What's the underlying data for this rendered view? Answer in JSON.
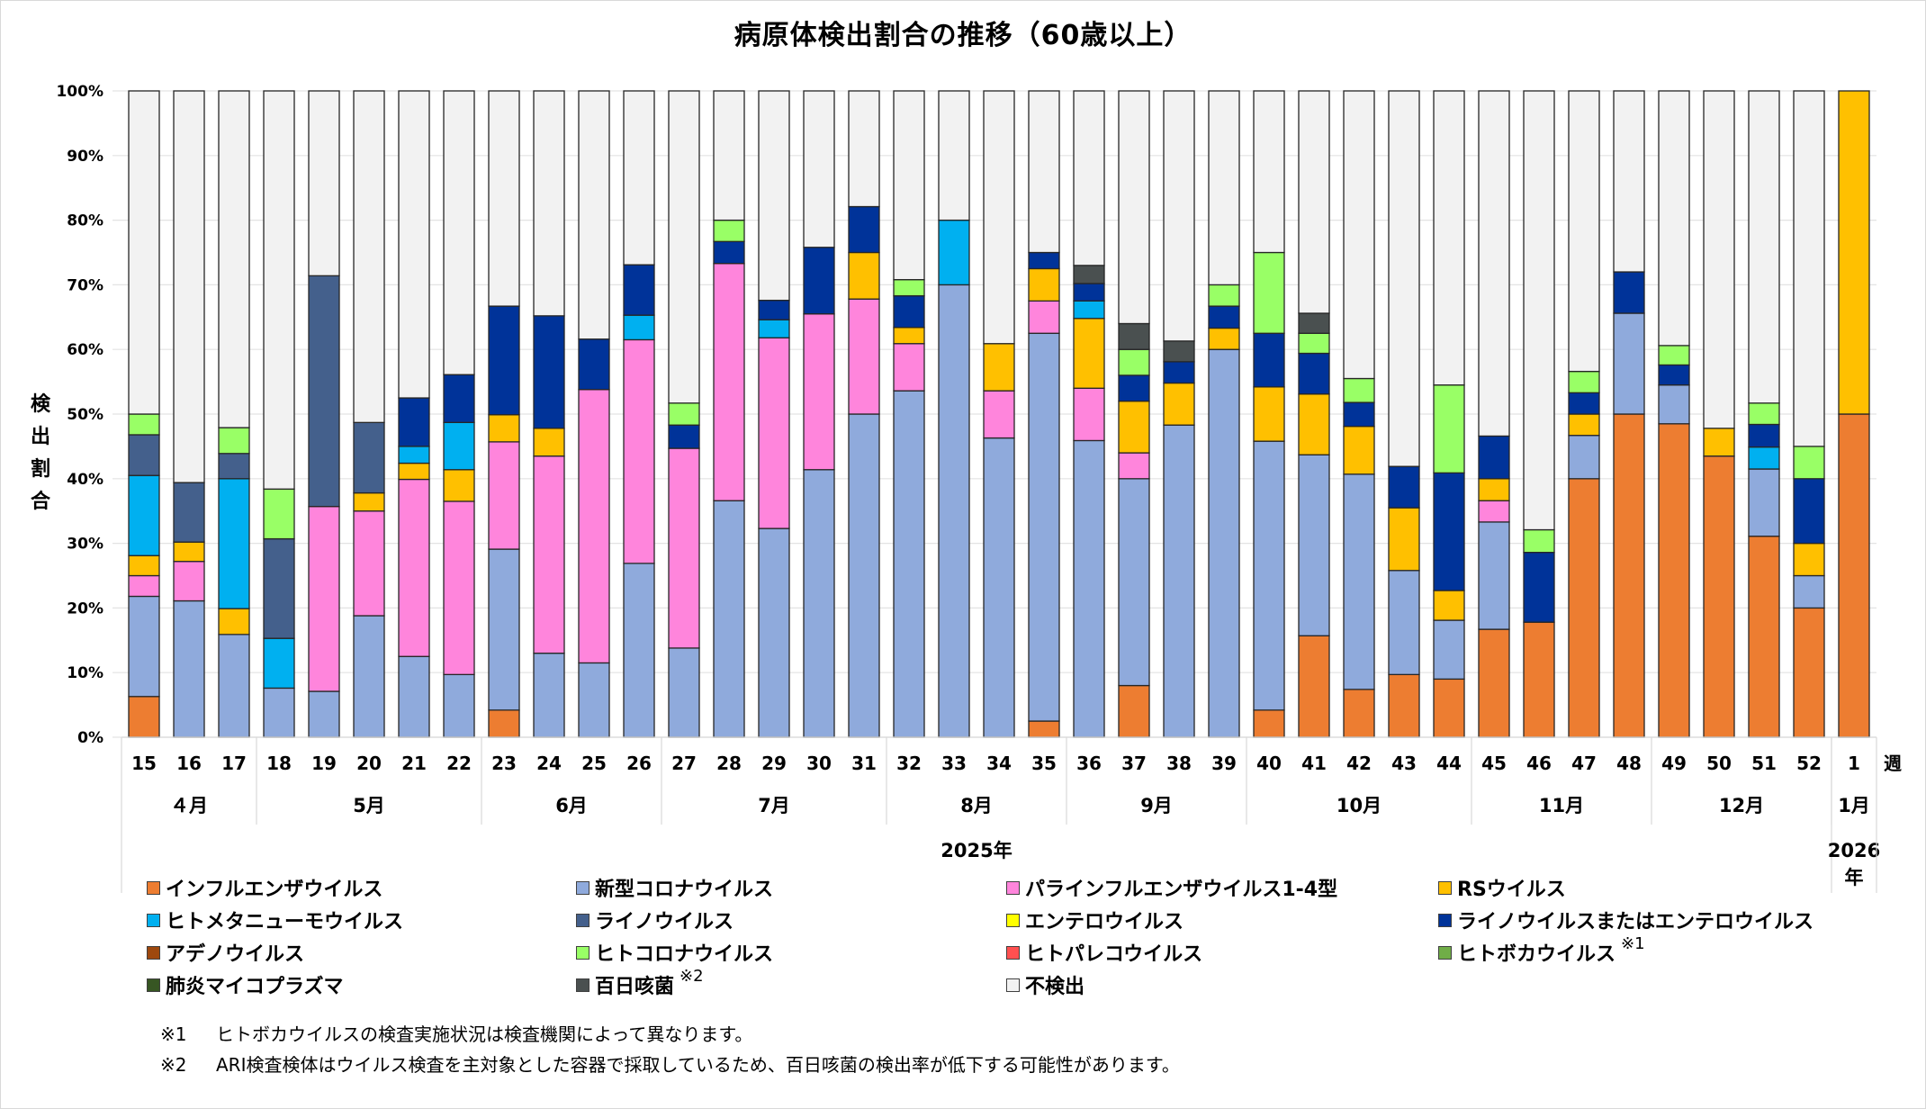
{
  "chart_data": {
    "type": "bar",
    "stacked": true,
    "percent_stacked": true,
    "title": "病原体検出割合の推移（60歳以上）",
    "ylabel": "検出割合",
    "xlabel_suffix": "週",
    "ylim": [
      0,
      100
    ],
    "yticks": [
      "0%",
      "10%",
      "20%",
      "30%",
      "40%",
      "50%",
      "60%",
      "70%",
      "80%",
      "90%",
      "100%"
    ],
    "grid": true,
    "legend_position": "bottom",
    "categories": [
      "15",
      "16",
      "17",
      "18",
      "19",
      "20",
      "21",
      "22",
      "23",
      "24",
      "25",
      "26",
      "27",
      "28",
      "29",
      "30",
      "31",
      "32",
      "33",
      "34",
      "35",
      "36",
      "37",
      "38",
      "39",
      "40",
      "41",
      "42",
      "43",
      "44",
      "45",
      "46",
      "47",
      "48",
      "49",
      "50",
      "51",
      "52",
      "1"
    ],
    "month_groups": [
      {
        "label": "４月",
        "count": 3
      },
      {
        "label": "5月",
        "count": 5
      },
      {
        "label": "6月",
        "count": 4
      },
      {
        "label": "7月",
        "count": 5
      },
      {
        "label": "8月",
        "count": 4
      },
      {
        "label": "9月",
        "count": 4
      },
      {
        "label": "10月",
        "count": 5
      },
      {
        "label": "11月",
        "count": 4
      },
      {
        "label": "12月",
        "count": 4
      },
      {
        "label": "1月",
        "count": 1
      }
    ],
    "year_groups": [
      {
        "label": "2025年",
        "count": 38
      },
      {
        "label": "2026年",
        "count": 1
      }
    ],
    "series": [
      {
        "name": "インフルエンザウイルス",
        "color": "#ED7D31",
        "values": [
          6.3,
          0,
          0,
          0,
          0,
          0,
          0,
          0,
          4.2,
          0,
          0,
          0,
          0,
          0,
          0,
          0,
          0,
          0,
          0,
          0,
          2.5,
          0,
          8,
          0,
          0,
          4.2,
          15.7,
          7.4,
          9.7,
          9,
          16.7,
          17.8,
          40,
          50,
          48.5,
          43.5,
          31.1,
          20,
          50
        ]
      },
      {
        "name": "新型コロナウイルス",
        "color": "#8FAADC",
        "values": [
          15.5,
          21.1,
          15.9,
          7.6,
          7.1,
          18.8,
          12.5,
          9.7,
          24.9,
          13,
          11.5,
          26.9,
          13.8,
          36.6,
          32.3,
          41.4,
          50,
          53.6,
          70,
          46.3,
          60,
          45.9,
          32,
          48.3,
          60,
          41.6,
          28,
          33.3,
          16.1,
          9.1,
          16.6,
          0,
          6.7,
          15.6,
          6,
          0,
          10.4,
          5,
          0
        ]
      },
      {
        "name": "パラインフルエンザウイルス1-4型",
        "color": "#FF85DC",
        "values": [
          3.2,
          6.1,
          0,
          0,
          28.6,
          16.2,
          27.4,
          26.8,
          16.6,
          30.5,
          42.3,
          34.6,
          30.9,
          36.7,
          29.5,
          24.1,
          17.8,
          7.3,
          0,
          7.3,
          5,
          8.1,
          4,
          0,
          0,
          0,
          0,
          0,
          0,
          0,
          3.3,
          0,
          0,
          0,
          0,
          0,
          0,
          0,
          0
        ]
      },
      {
        "name": "RSウイルス",
        "color": "#FFC000",
        "values": [
          3.1,
          3,
          4,
          0,
          0,
          2.8,
          2.5,
          4.9,
          4.2,
          4.3,
          0,
          0,
          0,
          0,
          0,
          0,
          7.2,
          2.5,
          0,
          7.3,
          5,
          10.8,
          8,
          6.5,
          3.3,
          8.4,
          9.4,
          7.4,
          9.7,
          4.6,
          3.4,
          0,
          3.3,
          0,
          0,
          4.3,
          0,
          5,
          50
        ]
      },
      {
        "name": "ヒトメタニューモウイルス",
        "color": "#00B0F0",
        "values": [
          12.4,
          0,
          20.1,
          7.7,
          0,
          0,
          2.6,
          7.3,
          0,
          0,
          0,
          3.8,
          0,
          0,
          2.8,
          0,
          0,
          0,
          10,
          0,
          0,
          2.7,
          0,
          0,
          0,
          0,
          0,
          0,
          0,
          0,
          0,
          0,
          0,
          0,
          0,
          0,
          3.4,
          0,
          0
        ]
      },
      {
        "name": "ライノウイルス",
        "color": "#44608C",
        "values": [
          6.3,
          9.2,
          3.9,
          15.4,
          35.7,
          10.9,
          0,
          0,
          0,
          0,
          0,
          0,
          0,
          0,
          0,
          0,
          0,
          0,
          0,
          0,
          0,
          0,
          0,
          0,
          0,
          0,
          0,
          0,
          0,
          0,
          0,
          0,
          0,
          0,
          0,
          0,
          0,
          0,
          0
        ]
      },
      {
        "name": "エンテロウイルス",
        "color": "#FFFF00",
        "values": [
          0,
          0,
          0,
          0,
          0,
          0,
          0,
          0,
          0,
          0,
          0,
          0,
          0,
          0,
          0,
          0,
          0,
          0,
          0,
          0,
          0,
          0,
          0,
          0,
          0,
          0,
          0,
          0,
          0,
          0,
          0,
          0,
          0,
          0,
          0,
          0,
          0,
          0,
          0
        ]
      },
      {
        "name": "ライノウイルスまたはエンテロウイルス",
        "color": "#003399",
        "values": [
          0,
          0,
          0,
          0,
          0,
          0,
          7.5,
          7.4,
          16.8,
          17.4,
          7.8,
          7.8,
          3.6,
          3.4,
          3,
          10.3,
          7.1,
          4.9,
          0,
          0,
          2.5,
          2.7,
          4,
          3.3,
          3.4,
          8.3,
          6.3,
          3.7,
          6.4,
          18.2,
          6.6,
          10.8,
          3.3,
          6.4,
          3.1,
          0,
          3.5,
          10,
          0
        ]
      },
      {
        "name": "アデノウイルス",
        "color": "#9E480E",
        "values": [
          0,
          0,
          0,
          0,
          0,
          0,
          0,
          0,
          0,
          0,
          0,
          0,
          0,
          0,
          0,
          0,
          0,
          0,
          0,
          0,
          0,
          0,
          0,
          0,
          0,
          0,
          0,
          0,
          0,
          0,
          0,
          0,
          0,
          0,
          0,
          0,
          0,
          0,
          0
        ]
      },
      {
        "name": "ヒトコロナウイルス",
        "color": "#99FF66",
        "values": [
          3.2,
          0,
          4,
          7.7,
          0,
          0,
          0,
          0,
          0,
          0,
          0,
          0,
          3.4,
          3.3,
          0,
          0,
          0,
          2.5,
          0,
          0,
          0,
          0,
          4,
          0,
          3.3,
          12.5,
          3.1,
          3.7,
          0,
          13.6,
          0,
          3.5,
          3.3,
          0,
          3,
          0,
          3.3,
          5,
          0
        ]
      },
      {
        "name": "ヒトパレコウイルス",
        "color": "#FF5050",
        "values": [
          0,
          0,
          0,
          0,
          0,
          0,
          0,
          0,
          0,
          0,
          0,
          0,
          0,
          0,
          0,
          0,
          0,
          0,
          0,
          0,
          0,
          0,
          0,
          0,
          0,
          0,
          0,
          0,
          0,
          0,
          0,
          0,
          0,
          0,
          0,
          0,
          0,
          0,
          0
        ]
      },
      {
        "name": "ヒトボカウイルス",
        "color": "#70AD47",
        "note": "※1",
        "values": [
          0,
          0,
          0,
          0,
          0,
          0,
          0,
          0,
          0,
          0,
          0,
          0,
          0,
          0,
          0,
          0,
          0,
          0,
          0,
          0,
          0,
          0,
          0,
          0,
          0,
          0,
          0,
          0,
          0,
          0,
          0,
          0,
          0,
          0,
          0,
          0,
          0,
          0,
          0
        ]
      },
      {
        "name": "肺炎マイコプラズマ",
        "color": "#375623",
        "values": [
          0,
          0,
          0,
          0,
          0,
          0,
          0,
          0,
          0,
          0,
          0,
          0,
          0,
          0,
          0,
          0,
          0,
          0,
          0,
          0,
          0,
          0,
          0,
          0,
          0,
          0,
          0,
          0,
          0,
          0,
          0,
          0,
          0,
          0,
          0,
          0,
          0,
          0,
          0
        ]
      },
      {
        "name": "百日咳菌",
        "color": "#4A5050",
        "note": "※2",
        "values": [
          0,
          0,
          0,
          0,
          0,
          0,
          0,
          0,
          0,
          0,
          0,
          0,
          0,
          0,
          0,
          0,
          0,
          0,
          0,
          0,
          0,
          2.8,
          4,
          3.2,
          0,
          0,
          3.1,
          0,
          0,
          0,
          0,
          0,
          0,
          0,
          0,
          0,
          0,
          0,
          0
        ]
      },
      {
        "name": "不検出",
        "color": "#F2F2F2",
        "values": [
          50,
          60.6,
          52.1,
          61.6,
          28.6,
          51.3,
          47.5,
          43.9,
          33.3,
          34.8,
          38.4,
          26.9,
          48.3,
          20,
          32.4,
          24.2,
          17.9,
          29.2,
          20,
          39.1,
          25,
          27,
          36,
          38.7,
          30,
          25,
          34.4,
          44.5,
          58.1,
          45.5,
          53.4,
          67.9,
          43.4,
          28,
          39.4,
          52.2,
          48.3,
          55,
          0
        ]
      }
    ]
  },
  "legend_layout_order": [
    "インフルエンザウイルス",
    "新型コロナウイルス",
    "パラインフルエンザウイルス1-4型",
    "RSウイルス",
    "ヒトメタニューモウイルス",
    "ライノウイルス",
    "エンテロウイルス",
    "ライノウイルスまたはエンテロウイルス",
    "アデノウイルス",
    "ヒトコロナウイルス",
    "ヒトパレコウイルス",
    "ヒトボカウイルス",
    "肺炎マイコプラズマ",
    "百日咳菌",
    "不検出"
  ],
  "notes": [
    {
      "mark": "※1",
      "text": "ヒトボカウイルスの検査実施状況は検査機関によって異なります。"
    },
    {
      "mark": "※2",
      "text": "ARI検査検体はウイルス検査を主対象とした容器で採取しているため、百日咳菌の検出率が低下する可能性があります。"
    }
  ]
}
